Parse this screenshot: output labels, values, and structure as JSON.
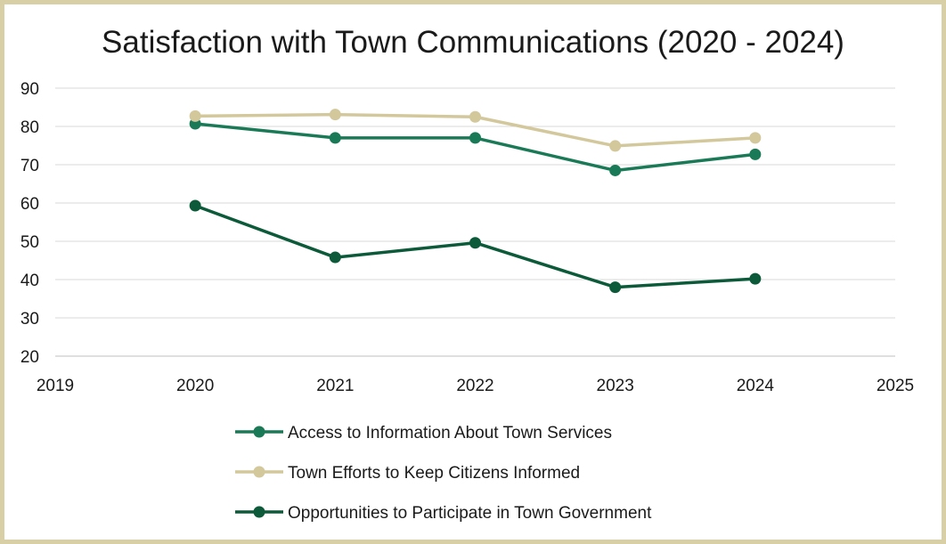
{
  "chart_data": {
    "type": "line",
    "title": "Satisfaction with Town Communications (2020 - 2024)",
    "xlabel": "",
    "ylabel": "",
    "xlim": [
      2019,
      2025
    ],
    "ylim": [
      20,
      90
    ],
    "x_ticks": [
      "2019",
      "2020",
      "2021",
      "2022",
      "2023",
      "2024",
      "2025"
    ],
    "y_ticks": [
      "20",
      "30",
      "40",
      "50",
      "60",
      "70",
      "80",
      "90"
    ],
    "grid": true,
    "legend_position": "bottom",
    "x": [
      2020,
      2021,
      2022,
      2023,
      2024
    ],
    "series": [
      {
        "name": "Access to Information About Town Services",
        "color": "#1a7a57",
        "values": [
          80.7,
          77,
          77,
          68.5,
          72.7
        ]
      },
      {
        "name": "Town Efforts to Keep Citizens Informed",
        "color": "#d3c79c",
        "values": [
          82.7,
          83.1,
          82.5,
          74.9,
          77
        ]
      },
      {
        "name": "Opportunities to Participate in Town Government",
        "color": "#0c5a3a",
        "values": [
          59.3,
          45.8,
          49.6,
          38,
          40.2
        ]
      }
    ]
  }
}
